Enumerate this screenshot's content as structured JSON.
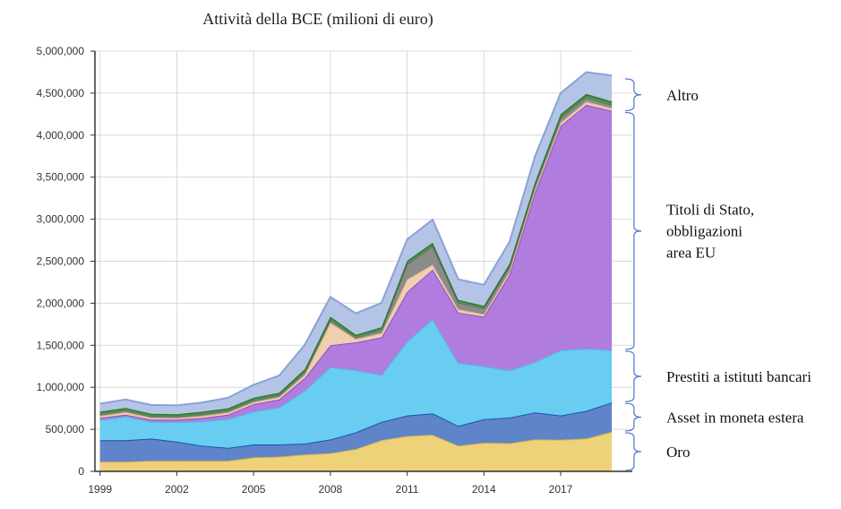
{
  "chart_data": {
    "type": "area",
    "title": "Attività della BCE  (milioni  di  euro)",
    "xlabel": "",
    "ylabel": "",
    "x": [
      1999,
      2000,
      2001,
      2002,
      2003,
      2004,
      2005,
      2006,
      2007,
      2008,
      2009,
      2010,
      2011,
      2012,
      2013,
      2014,
      2015,
      2016,
      2017,
      2018,
      2019
    ],
    "x_ticks": [
      "1999",
      "2002",
      "2005",
      "2008",
      "2011",
      "2014",
      "2017"
    ],
    "x_tick_values": [
      1999,
      2002,
      2005,
      2008,
      2011,
      2014,
      2017
    ],
    "ylim": [
      0,
      5000000
    ],
    "y_ticks": [
      "0",
      "500,000",
      "1,000,000",
      "1,500,000",
      "2,000,000",
      "2,500,000",
      "3,000,000",
      "3,500,000",
      "4,000,000",
      "4,500,000",
      "5,000,000"
    ],
    "y_tick_values": [
      0,
      500000,
      1000000,
      1500000,
      2000000,
      2500000,
      3000000,
      3500000,
      4000000,
      4500000,
      5000000
    ],
    "grid": true,
    "stacked": true,
    "series": [
      {
        "values": [
          115000,
          115000,
          125000,
          125000,
          125000,
          125000,
          165000,
          175000,
          200000,
          215000,
          265000,
          370000,
          420000,
          435000,
          305000,
          340000,
          335000,
          380000,
          375000,
          390000,
          470000
        ],
        "color": "#edd27a",
        "line": "#d9b84a"
      },
      {
        "values": [
          255000,
          255000,
          265000,
          230000,
          180000,
          155000,
          155000,
          145000,
          130000,
          165000,
          200000,
          220000,
          245000,
          255000,
          235000,
          280000,
          305000,
          320000,
          290000,
          330000,
          350000
        ],
        "color": "#5f84c9",
        "line": "#1c52b0"
      },
      {
        "values": [
          240000,
          280000,
          200000,
          230000,
          290000,
          340000,
          390000,
          440000,
          630000,
          860000,
          740000,
          555000,
          880000,
          1120000,
          750000,
          630000,
          560000,
          600000,
          775000,
          740000,
          620000
        ],
        "color": "#68cdf0",
        "line": "#4fbde6"
      },
      {
        "values": [
          25000,
          25000,
          25000,
          30000,
          40000,
          55000,
          90000,
          95000,
          150000,
          260000,
          330000,
          450000,
          590000,
          590000,
          600000,
          590000,
          1140000,
          2020000,
          2670000,
          2900000,
          2850000
        ],
        "color": "#b07ddf",
        "line": "#8a4fc8"
      },
      {
        "values": [
          25000,
          30000,
          25000,
          20000,
          25000,
          25000,
          25000,
          30000,
          40000,
          270000,
          40000,
          50000,
          150000,
          60000,
          40000,
          30000,
          40000,
          40000,
          40000,
          40000,
          30000
        ],
        "color": "#f0ceb0",
        "line": "#e0b48a"
      },
      {
        "values": [
          20000,
          20000,
          15000,
          15000,
          20000,
          20000,
          20000,
          20000,
          30000,
          30000,
          20000,
          40000,
          180000,
          220000,
          80000,
          70000,
          60000,
          50000,
          60000,
          50000,
          40000
        ],
        "color": "#8b8b8b",
        "line": "#6e6e6e"
      },
      {
        "values": [
          30000,
          30000,
          30000,
          30000,
          30000,
          30000,
          30000,
          30000,
          35000,
          40000,
          30000,
          30000,
          40000,
          40000,
          30000,
          30000,
          30000,
          30000,
          40000,
          40000,
          40000
        ],
        "color": "#4a9a4a",
        "line": "#2d7a2d"
      },
      {
        "values": [
          95000,
          100000,
          105000,
          105000,
          110000,
          125000,
          155000,
          205000,
          290000,
          235000,
          255000,
          290000,
          255000,
          275000,
          245000,
          250000,
          260000,
          310000,
          250000,
          260000,
          310000
        ],
        "color": "#b4c4e6",
        "line": "#8aa2d6"
      }
    ],
    "brace_labels": [
      {
        "text": "Altro",
        "from": 4280000,
        "to": 4680000
      },
      {
        "text": "Titoli di Stato,",
        "text2": "obbligazioni",
        "text3": "area EU",
        "from": 1440000,
        "to": 4280000
      },
      {
        "text": "Prestiti a istituti bancari",
        "from": 820000,
        "to": 1440000
      },
      {
        "text": "Asset in moneta estera",
        "from": 470000,
        "to": 820000
      },
      {
        "text": "Oro",
        "from": 0,
        "to": 470000
      }
    ]
  },
  "colors": {
    "grid": "#d9d9d9",
    "axis": "#333333",
    "brace": "#4a78c8"
  }
}
